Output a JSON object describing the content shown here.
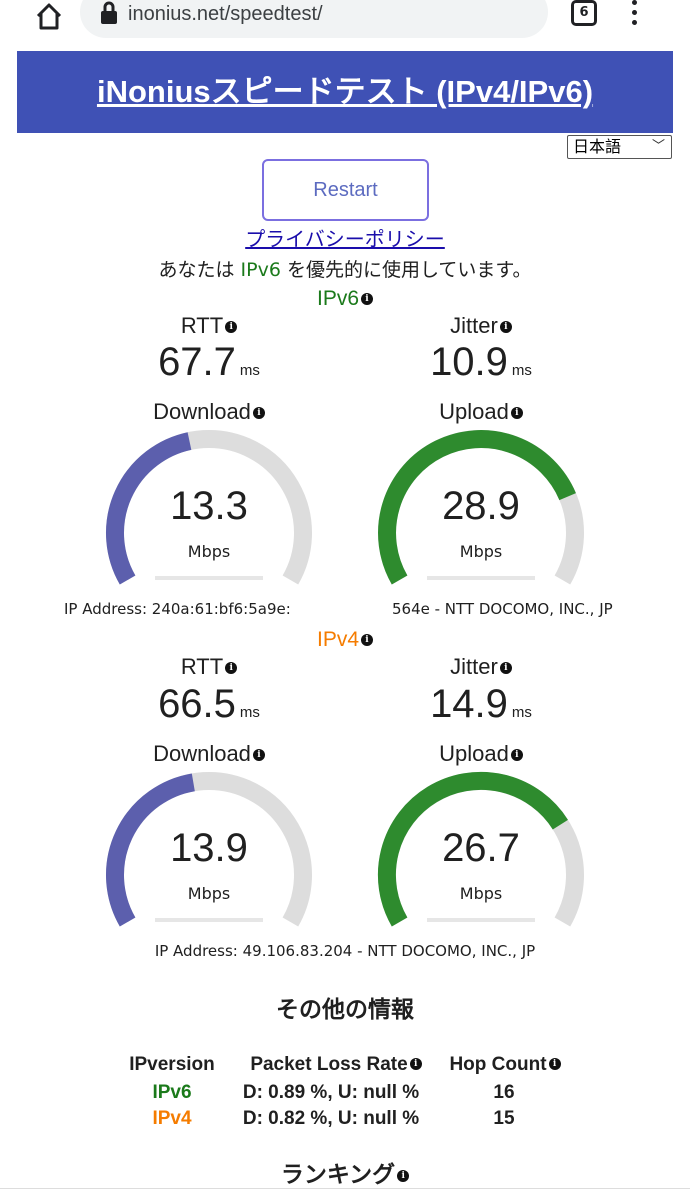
{
  "browser": {
    "url": "inonius.net/speedtest/",
    "tab_count": "6"
  },
  "header": {
    "title": "iNoniusスピードテスト (IPv4/IPv6)"
  },
  "language": {
    "selected": "日本語"
  },
  "restart_label": "Restart",
  "privacy_label": "プライバシーポリシー",
  "preference": {
    "before": "あなたは ",
    "protocol": "IPv6",
    "after": " を優先的に使用しています。"
  },
  "ipv6": {
    "title": "IPv6",
    "rtt_label": "RTT",
    "rtt_value": "67.7",
    "rtt_unit": "ms",
    "jitter_label": "Jitter",
    "jitter_value": "10.9",
    "jitter_unit": "ms",
    "download_label": "Download",
    "download_value": "13.3",
    "download_unit": "Mbps",
    "download_fill": 0.45,
    "upload_label": "Upload",
    "upload_value": "28.9",
    "upload_unit": "Mbps",
    "upload_fill": 0.78,
    "ip_left": "IP Address: 240a:61:bf6:5a9e:",
    "ip_right": "564e - NTT DOCOMO, INC., JP"
  },
  "ipv4": {
    "title": "IPv4",
    "rtt_label": "RTT",
    "rtt_value": "66.5",
    "rtt_unit": "ms",
    "jitter_label": "Jitter",
    "jitter_value": "14.9",
    "jitter_unit": "ms",
    "download_label": "Download",
    "download_value": "13.9",
    "download_unit": "Mbps",
    "download_fill": 0.46,
    "upload_label": "Upload",
    "upload_value": "26.7",
    "upload_unit": "Mbps",
    "upload_fill": 0.74,
    "ip": "IP Address: 49.106.83.204 - NTT DOCOMO, INC., JP"
  },
  "other_info": {
    "title": "その他の情報",
    "headers": {
      "version": "IPversion",
      "loss": "Packet Loss Rate",
      "hops": "Hop Count"
    },
    "rows": [
      {
        "version": "IPv6",
        "loss": "D: 0.89 %, U: null %",
        "hops": "16"
      },
      {
        "version": "IPv4",
        "loss": "D: 0.82 %, U: null %",
        "hops": "15"
      }
    ]
  },
  "ranking": {
    "title": "ランキング"
  },
  "colors": {
    "download": "#5c5fad",
    "upload": "#2e8b2e",
    "track": "#dddddd",
    "header": "#3f51b5"
  }
}
